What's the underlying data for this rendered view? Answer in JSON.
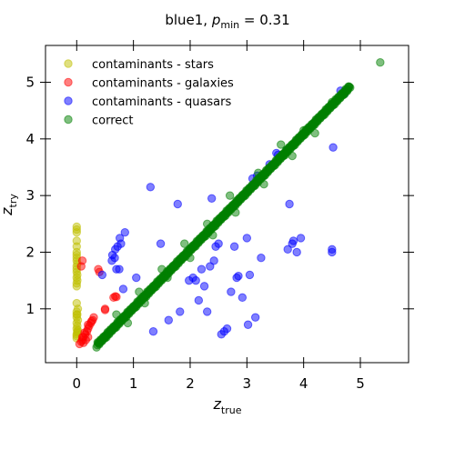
{
  "chart_data": {
    "type": "scatter",
    "title_main": "blue1, ",
    "title_sym": "p",
    "title_sub": "min",
    "title_rest": " = 0.31",
    "xlabel_sym": "z",
    "xlabel_sub": "true",
    "ylabel_sym": "z",
    "ylabel_sub": "try",
    "xlim": [
      -0.55,
      5.85
    ],
    "ylim": [
      0.05,
      5.65
    ],
    "xticks": [
      0,
      1,
      2,
      3,
      4,
      5
    ],
    "yticks": [
      1,
      2,
      3,
      4,
      5
    ],
    "legend_position": "top-left",
    "grid": false,
    "series": [
      {
        "name": "contaminants - stars",
        "color": "#bfbf00",
        "points": [
          [
            0,
            0.48
          ],
          [
            0,
            0.52
          ],
          [
            0,
            0.55
          ],
          [
            0.01,
            0.6
          ],
          [
            0,
            0.65
          ],
          [
            0.01,
            0.7
          ],
          [
            0,
            0.75
          ],
          [
            0.02,
            0.8
          ],
          [
            0,
            0.85
          ],
          [
            0.01,
            0.9
          ],
          [
            0,
            0.95
          ],
          [
            0.02,
            1.0
          ],
          [
            0,
            1.1
          ],
          [
            0,
            1.4
          ],
          [
            0,
            1.45
          ],
          [
            0.01,
            1.5
          ],
          [
            0,
            1.55
          ],
          [
            0.01,
            1.6
          ],
          [
            0,
            1.65
          ],
          [
            0,
            1.7
          ],
          [
            0,
            1.75
          ],
          [
            0.01,
            1.8
          ],
          [
            0,
            1.85
          ],
          [
            0,
            1.9
          ],
          [
            0,
            1.95
          ],
          [
            0,
            2.0
          ],
          [
            0,
            2.1
          ],
          [
            0,
            2.2
          ],
          [
            0,
            2.35
          ],
          [
            0,
            2.4
          ],
          [
            0,
            2.45
          ],
          [
            0.01,
            0.58
          ],
          [
            0.02,
            0.62
          ],
          [
            0,
            0.9
          ]
        ]
      },
      {
        "name": "contaminants - galaxies",
        "color": "#ff0000",
        "points": [
          [
            0.05,
            0.38
          ],
          [
            0.08,
            0.42
          ],
          [
            0.1,
            0.45
          ],
          [
            0.12,
            0.5
          ],
          [
            0.15,
            0.55
          ],
          [
            0.18,
            0.6
          ],
          [
            0.2,
            0.65
          ],
          [
            0.22,
            0.7
          ],
          [
            0.25,
            0.75
          ],
          [
            0.28,
            0.8
          ],
          [
            0.3,
            0.85
          ],
          [
            0.1,
            0.5
          ],
          [
            0.14,
            0.58
          ],
          [
            0.2,
            0.72
          ],
          [
            0.26,
            0.78
          ],
          [
            0.08,
            1.75
          ],
          [
            0.1,
            1.85
          ],
          [
            0.4,
            1.65
          ],
          [
            0.38,
            1.7
          ],
          [
            0.12,
            0.4
          ],
          [
            0.16,
            0.45
          ],
          [
            0.2,
            0.5
          ],
          [
            0.5,
            0.98
          ],
          [
            0.5,
            1.0
          ],
          [
            0.65,
            1.2
          ],
          [
            0.7,
            1.21
          ],
          [
            0.68,
            1.22
          ]
        ]
      },
      {
        "name": "contaminants - quasars",
        "color": "#0000ff",
        "points": [
          [
            0.45,
            1.6
          ],
          [
            0.62,
            1.85
          ],
          [
            0.67,
            1.9
          ],
          [
            0.72,
            2.1
          ],
          [
            0.78,
            2.15
          ],
          [
            0.76,
            2.25
          ],
          [
            0.85,
            2.35
          ],
          [
            0.63,
            1.95
          ],
          [
            0.68,
            2.05
          ],
          [
            0.7,
            1.7
          ],
          [
            0.75,
            1.7
          ],
          [
            0.82,
            1.35
          ],
          [
            1.05,
            1.55
          ],
          [
            1.3,
            3.15
          ],
          [
            1.35,
            0.6
          ],
          [
            1.48,
            2.15
          ],
          [
            1.62,
            0.8
          ],
          [
            1.78,
            2.85
          ],
          [
            1.82,
            0.95
          ],
          [
            1.98,
            1.5
          ],
          [
            2.05,
            1.55
          ],
          [
            2.1,
            1.5
          ],
          [
            2.15,
            1.15
          ],
          [
            2.2,
            1.7
          ],
          [
            2.25,
            1.4
          ],
          [
            2.3,
            0.95
          ],
          [
            2.35,
            1.75
          ],
          [
            2.42,
            1.85
          ],
          [
            2.38,
            2.95
          ],
          [
            2.45,
            2.1
          ],
          [
            2.5,
            2.15
          ],
          [
            2.55,
            0.55
          ],
          [
            2.6,
            0.6
          ],
          [
            2.65,
            0.65
          ],
          [
            2.72,
            1.3
          ],
          [
            2.78,
            2.1
          ],
          [
            2.82,
            1.55
          ],
          [
            2.85,
            1.58
          ],
          [
            2.92,
            1.2
          ],
          [
            3.0,
            2.25
          ],
          [
            3.02,
            0.72
          ],
          [
            3.05,
            1.6
          ],
          [
            3.15,
            0.85
          ],
          [
            3.18,
            3.35
          ],
          [
            3.25,
            1.9
          ],
          [
            3.4,
            3.55
          ],
          [
            3.52,
            3.75
          ],
          [
            3.7,
            3.8
          ],
          [
            3.72,
            2.05
          ],
          [
            3.75,
            2.85
          ],
          [
            3.8,
            2.15
          ],
          [
            3.82,
            2.2
          ],
          [
            3.88,
            2.0
          ],
          [
            3.95,
            2.25
          ],
          [
            4.5,
            2.0
          ],
          [
            4.5,
            2.05
          ],
          [
            4.52,
            3.85
          ],
          [
            4.72,
            4.8
          ],
          [
            4.65,
            4.85
          ],
          [
            3.55,
            3.72
          ],
          [
            3.1,
            3.3
          ]
        ]
      },
      {
        "name": "correct",
        "color": "#008000",
        "diagonal": [
          [
            0.35,
            0.35
          ],
          [
            4.8,
            4.9
          ]
        ],
        "points": [
          [
            5.35,
            5.35
          ],
          [
            4.5,
            4.65
          ],
          [
            4.0,
            4.15
          ],
          [
            3.6,
            3.9
          ],
          [
            3.2,
            3.4
          ],
          [
            2.7,
            3.0
          ],
          [
            2.3,
            2.5
          ],
          [
            1.9,
            2.15
          ],
          [
            1.5,
            1.7
          ],
          [
            1.1,
            1.3
          ],
          [
            0.7,
            0.9
          ],
          [
            4.2,
            4.1
          ],
          [
            3.8,
            3.7
          ],
          [
            3.3,
            3.2
          ],
          [
            2.8,
            2.7
          ],
          [
            2.4,
            2.3
          ],
          [
            2.0,
            1.9
          ],
          [
            1.6,
            1.55
          ],
          [
            1.2,
            1.1
          ],
          [
            0.9,
            0.75
          ]
        ]
      }
    ]
  }
}
